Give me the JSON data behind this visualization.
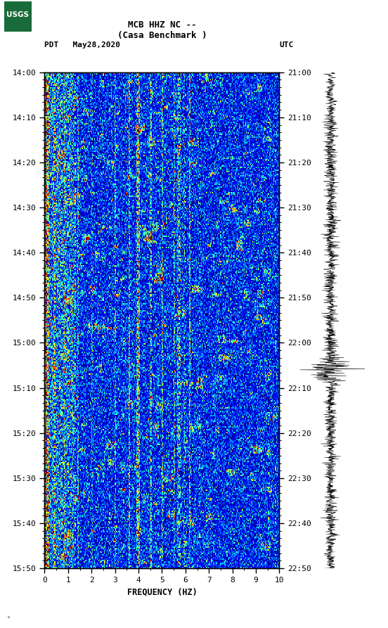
{
  "title_line1": "MCB HHZ NC --",
  "title_line2": "(Casa Benchmark )",
  "left_label": "PDT   May28,2020",
  "right_label": "UTC",
  "freq_label": "FREQUENCY (HZ)",
  "freq_ticks": [
    0,
    1,
    2,
    3,
    4,
    5,
    6,
    7,
    8,
    9,
    10
  ],
  "time_ticks_left": [
    "14:00",
    "14:10",
    "14:20",
    "14:30",
    "14:40",
    "14:50",
    "15:00",
    "15:10",
    "15:20",
    "15:30",
    "15:40",
    "15:50"
  ],
  "time_ticks_right": [
    "21:00",
    "21:10",
    "21:20",
    "21:30",
    "21:40",
    "21:50",
    "22:00",
    "22:10",
    "22:20",
    "22:30",
    "22:40",
    "22:50"
  ],
  "n_time": 360,
  "n_freq": 300,
  "bg_color": "#ffffff",
  "usgs_green": "#1a6b3a",
  "spectrogram_cmap": "jet",
  "noise_seed": 42,
  "fig_width": 5.52,
  "fig_height": 8.93,
  "dpi": 100
}
